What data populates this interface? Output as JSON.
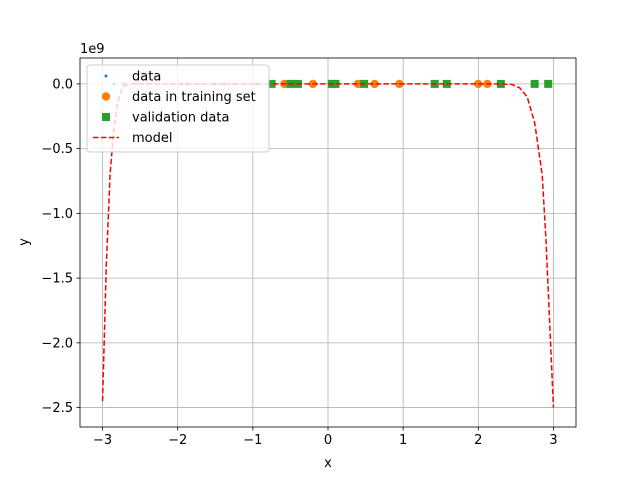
{
  "chart_data": {
    "type": "scatter",
    "xlabel": "x",
    "ylabel": "y",
    "y_multiplier_label": "1e9",
    "y_scale": 1000000000,
    "xlim": [
      -3.3,
      3.3
    ],
    "ylim": [
      -2.65,
      0.2
    ],
    "x_ticks": [
      -3,
      -2,
      -1,
      0,
      1,
      2,
      3
    ],
    "x_tick_labels": [
      "−3",
      "−2",
      "−1",
      "0",
      "1",
      "2",
      "3"
    ],
    "y_ticks": [
      0.0,
      -0.5,
      -1.0,
      -1.5,
      -2.0,
      -2.5
    ],
    "y_tick_labels": [
      "0.0",
      "−0.5",
      "−1.0",
      "−1.5",
      "−2.0",
      "−2.5"
    ],
    "grid": true,
    "legend_position": "top-left",
    "legend": [
      "data",
      "data in training set",
      "validation data",
      "model"
    ],
    "series": [
      {
        "name": "data",
        "style": "point",
        "color": "#1f77b4",
        "x": [
          -2.85,
          -2.72,
          -2.55,
          -1.95,
          -1.88,
          -1.5,
          -1.38,
          -1.25,
          -0.95,
          -0.75,
          -0.58,
          -0.5,
          -0.4,
          -0.2,
          0.05,
          0.1,
          0.4,
          0.48,
          0.62,
          0.95,
          1.42,
          1.58,
          2.0,
          2.12,
          2.3,
          2.75,
          2.93
        ],
        "y": [
          0,
          0,
          0,
          0,
          0,
          0,
          0,
          0,
          0,
          0,
          0,
          0,
          0,
          0,
          0,
          0,
          0,
          0,
          0,
          0,
          0,
          0,
          0,
          0,
          0,
          0,
          0
        ]
      },
      {
        "name": "data in training set",
        "style": "circle",
        "color": "#ff7f0e",
        "x": [
          -0.58,
          -0.2,
          0.4,
          0.62,
          0.95,
          2.0,
          2.12
        ],
        "y": [
          0,
          0,
          0,
          0,
          0,
          0,
          0
        ]
      },
      {
        "name": "validation data",
        "style": "square",
        "color": "#2ca02c",
        "x": [
          -0.75,
          -0.5,
          -0.4,
          0.05,
          0.1,
          0.48,
          1.42,
          1.58,
          2.3,
          2.75,
          2.93
        ],
        "y": [
          0,
          0,
          0,
          0,
          0,
          0,
          0,
          0,
          0,
          0,
          0
        ]
      },
      {
        "name": "model",
        "style": "dashed-line",
        "color": "#ff0000",
        "x": [
          -3.0,
          -2.95,
          -2.9,
          -2.85,
          -2.8,
          -2.75,
          -2.7,
          -2.6,
          -2.5,
          -2.3,
          -2.0,
          -1.5,
          -1.0,
          0.0,
          1.0,
          2.0,
          2.3,
          2.45,
          2.55,
          2.65,
          2.75,
          2.85,
          2.9,
          2.95,
          3.0
        ],
        "y": [
          -2.45,
          -1.4,
          -0.7,
          -0.35,
          -0.15,
          -0.05,
          -0.01,
          0.0,
          0.0,
          0.0,
          0.0,
          0.0,
          0.0,
          0.0,
          0.0,
          0.0,
          0.0,
          -0.005,
          -0.03,
          -0.1,
          -0.3,
          -0.7,
          -1.2,
          -1.85,
          -2.5
        ]
      }
    ]
  }
}
